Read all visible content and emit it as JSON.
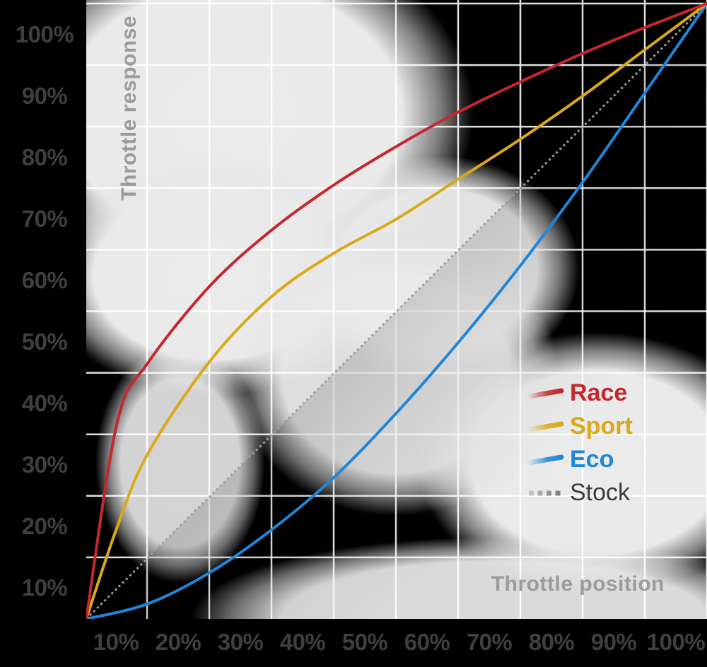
{
  "axes": {
    "x_title": "Throttle position",
    "y_title": "Throttle response",
    "x_ticks": [
      "10%",
      "20%",
      "30%",
      "40%",
      "50%",
      "60%",
      "70%",
      "80%",
      "90%",
      "100%"
    ],
    "y_ticks": [
      "10%",
      "20%",
      "30%",
      "40%",
      "50%",
      "60%",
      "70%",
      "80%",
      "90%",
      "100%"
    ]
  },
  "legend": {
    "items": [
      {
        "label": "Race",
        "color": "#c4272e",
        "swatch": "line-fade",
        "text_color": "#c4272e",
        "bold": true
      },
      {
        "label": "Sport",
        "color": "#d9a91a",
        "swatch": "line-fade",
        "text_color": "#d9a91a",
        "bold": true
      },
      {
        "label": "Eco",
        "color": "#1f86d8",
        "swatch": "line-fade",
        "text_color": "#1f86d8",
        "bold": true
      },
      {
        "label": "Stock",
        "color": "#8a8a8a",
        "swatch": "dotted",
        "text_color": "#3c3c3c",
        "bold": false
      }
    ]
  },
  "colors": {
    "background": "#000000",
    "plot_light": "#eaeaea",
    "gridline": "#ffffff",
    "tick_text": "#3f3f3f",
    "axis_title_text": "#9b9b9b",
    "stock_line": "#9e9e9e"
  },
  "chart_data": {
    "type": "line",
    "x_label": "Throttle position",
    "y_label": "Throttle response",
    "x_range": [
      0,
      100
    ],
    "y_range": [
      0,
      100
    ],
    "grid": true,
    "grid_step_percent": 10,
    "legend_position": "right-middle",
    "series": [
      {
        "name": "Race",
        "color": "#c4272e",
        "dashed": false,
        "points": [
          [
            0,
            0
          ],
          [
            5,
            32
          ],
          [
            10,
            41.7
          ],
          [
            20,
            54.2
          ],
          [
            30,
            63.3
          ],
          [
            40,
            70.6
          ],
          [
            50,
            76.8
          ],
          [
            60,
            82.4
          ],
          [
            70,
            87.3
          ],
          [
            80,
            91.9
          ],
          [
            90,
            96.1
          ],
          [
            100,
            100
          ]
        ]
      },
      {
        "name": "Sport",
        "color": "#d9a91a",
        "dashed": false,
        "points": [
          [
            0,
            0
          ],
          [
            5,
            15
          ],
          [
            10,
            27
          ],
          [
            20,
            42
          ],
          [
            30,
            52.5
          ],
          [
            40,
            59.5
          ],
          [
            50,
            65
          ],
          [
            60,
            71.5
          ],
          [
            70,
            78
          ],
          [
            80,
            85
          ],
          [
            90,
            92.5
          ],
          [
            100,
            100
          ]
        ]
      },
      {
        "name": "Eco",
        "color": "#1f86d8",
        "dashed": false,
        "points": [
          [
            0,
            0
          ],
          [
            10,
            2.5
          ],
          [
            20,
            7.6
          ],
          [
            30,
            14.6
          ],
          [
            40,
            23.1
          ],
          [
            50,
            33.5
          ],
          [
            60,
            45
          ],
          [
            70,
            57.5
          ],
          [
            80,
            71
          ],
          [
            90,
            85.5
          ],
          [
            100,
            100
          ]
        ]
      },
      {
        "name": "Stock",
        "color": "#9e9e9e",
        "dashed": true,
        "points": [
          [
            0,
            0
          ],
          [
            100,
            100
          ]
        ]
      }
    ]
  }
}
